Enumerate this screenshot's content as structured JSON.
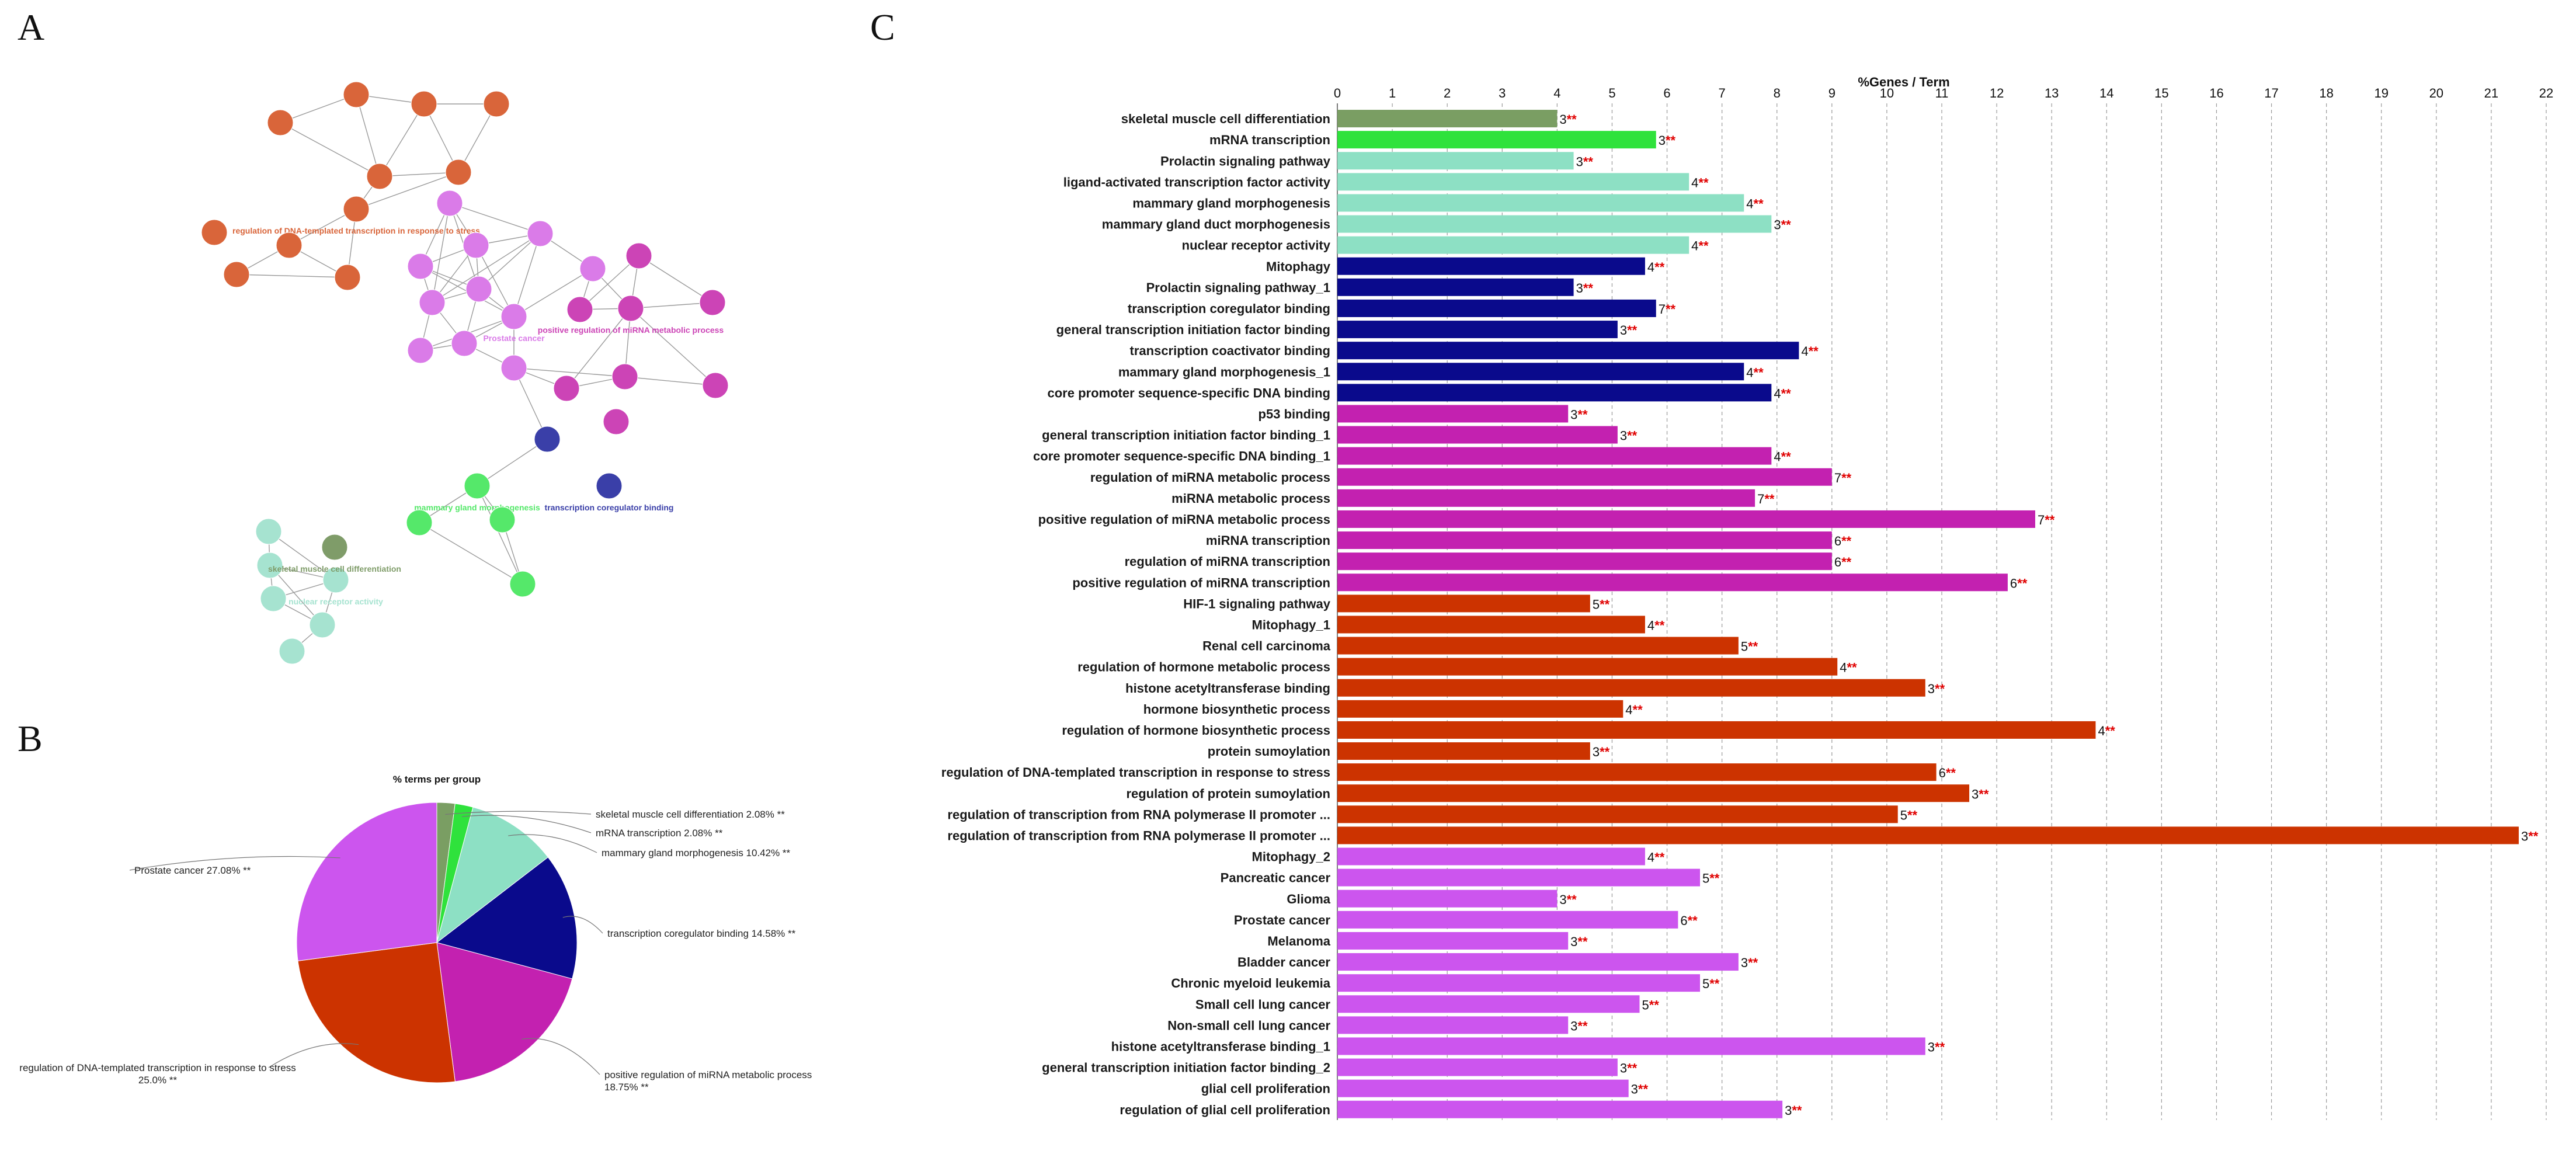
{
  "panels": {
    "a": "A",
    "b": "B",
    "c": "C"
  },
  "network": {
    "nodes": [
      {
        "id": "n1",
        "color": "#d9653a",
        "label": ""
      },
      {
        "id": "n2",
        "color": "#d9653a",
        "label": ""
      },
      {
        "id": "n3",
        "color": "#d9653a",
        "label": ""
      },
      {
        "id": "n4",
        "color": "#d9653a",
        "label": ""
      },
      {
        "id": "n5",
        "color": "#d9653a",
        "label": ""
      },
      {
        "id": "n6",
        "color": "#d9653a",
        "label": ""
      },
      {
        "id": "n7",
        "color": "#d9653a",
        "label": "regulation of DNA-templated transcription in response to stress",
        "highlight": true
      },
      {
        "id": "n8",
        "color": "#d9653a",
        "label": ""
      },
      {
        "id": "n9",
        "color": "#d9653a",
        "label": ""
      },
      {
        "id": "n10",
        "color": "#d9653a",
        "label": ""
      },
      {
        "id": "n11",
        "color": "#d9653a",
        "label": ""
      },
      {
        "id": "m1",
        "color": "#da7be8",
        "label": ""
      },
      {
        "id": "m2",
        "color": "#da7be8",
        "label": ""
      },
      {
        "id": "m3",
        "color": "#da7be8",
        "label": ""
      },
      {
        "id": "m4",
        "color": "#da7be8",
        "label": ""
      },
      {
        "id": "m5",
        "color": "#da7be8",
        "label": ""
      },
      {
        "id": "m6",
        "color": "#da7be8",
        "label": ""
      },
      {
        "id": "m7",
        "color": "#da7be8",
        "label": "Prostate cancer",
        "highlight": true
      },
      {
        "id": "m8",
        "color": "#da7be8",
        "label": ""
      },
      {
        "id": "m9",
        "color": "#da7be8",
        "label": ""
      },
      {
        "id": "m10",
        "color": "#da7be8",
        "label": ""
      },
      {
        "id": "m11",
        "color": "#da7be8",
        "label": ""
      },
      {
        "id": "p1",
        "color": "#cc44b6",
        "label": ""
      },
      {
        "id": "p2",
        "color": "#cc44b6",
        "label": ""
      },
      {
        "id": "p3",
        "color": "#cc44b6",
        "label": ""
      },
      {
        "id": "p4",
        "color": "#cc44b6",
        "label": "positive regulation of miRNA metabolic process",
        "highlight": true
      },
      {
        "id": "p5",
        "color": "#cc44b6",
        "label": ""
      },
      {
        "id": "p6",
        "color": "#cc44b6",
        "label": ""
      },
      {
        "id": "p7",
        "color": "#cc44b6",
        "label": ""
      },
      {
        "id": "p8",
        "color": "#cc44b6",
        "label": ""
      },
      {
        "id": "b1",
        "color": "#3a3fa8",
        "label": ""
      },
      {
        "id": "b2",
        "color": "#3a3fa8",
        "label": "transcription coregulator binding",
        "highlight": true
      },
      {
        "id": "g1",
        "color": "#55e86a",
        "label": "mammary gland morphogenesis",
        "highlight": true
      },
      {
        "id": "g2",
        "color": "#55e86a",
        "label": ""
      },
      {
        "id": "g3",
        "color": "#55e86a",
        "label": ""
      },
      {
        "id": "g4",
        "color": "#55e86a",
        "label": ""
      },
      {
        "id": "t1",
        "color": "#a6e3d0",
        "label": ""
      },
      {
        "id": "t2",
        "color": "#a6e3d0",
        "label": ""
      },
      {
        "id": "t3",
        "color": "#a6e3d0",
        "label": ""
      },
      {
        "id": "t4",
        "color": "#a6e3d0",
        "label": "nuclear receptor activity",
        "highlight": true
      },
      {
        "id": "t5",
        "color": "#a6e3d0",
        "label": ""
      },
      {
        "id": "t6",
        "color": "#a6e3d0",
        "label": ""
      },
      {
        "id": "o1",
        "color": "#7f9c69",
        "label": "skeletal muscle cell differentiation",
        "highlight": true
      }
    ]
  },
  "pie": {
    "title": "% terms per group",
    "slices": [
      {
        "name": "skeletal muscle cell differentiation",
        "label": "skeletal muscle cell differentiation 2.08% **",
        "value": 2.08,
        "color": "#7a9e63"
      },
      {
        "name": "mRNA transcription",
        "label": "mRNA transcription 2.08% **",
        "value": 2.08,
        "color": "#2fe23c"
      },
      {
        "name": "mammary gland morphogenesis",
        "label": "mammary gland morphogenesis 10.42% **",
        "value": 10.42,
        "color": "#8de0c4"
      },
      {
        "name": "transcription coregulator binding",
        "label": "transcription coregulator binding 14.58% **",
        "value": 14.58,
        "color": "#0a0a8c"
      },
      {
        "name": "positive regulation of miRNA metabolic process",
        "label": "positive regulation of miRNA metabolic process 18.75% **",
        "value": 18.75,
        "color": "#c321b0"
      },
      {
        "name": "regulation of DNA-templated transcription in response to stress",
        "label": "regulation of DNA-templated transcription in response to stress 25.0% **",
        "value": 25.0,
        "color": "#cc3300"
      },
      {
        "name": "Prostate cancer",
        "label": "Prostate cancer 27.08% **",
        "value": 27.08,
        "color": "#cc55ee"
      }
    ]
  },
  "chart_data": {
    "type": "bar",
    "orientation": "horizontal",
    "title": "%Genes / Term",
    "xlim": [
      0,
      22
    ],
    "xticks": [
      0,
      1,
      2,
      3,
      4,
      5,
      6,
      7,
      8,
      9,
      10,
      11,
      12,
      13,
      14,
      15,
      16,
      17,
      18,
      19,
      20,
      21,
      22
    ],
    "grid": "vertical dashed",
    "series": [
      {
        "category": "skeletal muscle cell differentiation",
        "value": 4.0,
        "count": "3",
        "stars": "**",
        "color": "#7a9e63"
      },
      {
        "category": "mRNA transcription",
        "value": 5.8,
        "count": "3",
        "stars": "**",
        "color": "#2fe23c"
      },
      {
        "category": "Prolactin signaling pathway",
        "value": 4.3,
        "count": "3",
        "stars": "**",
        "color": "#8de0c4"
      },
      {
        "category": "ligand-activated transcription factor activity",
        "value": 6.4,
        "count": "4",
        "stars": "**",
        "color": "#8de0c4"
      },
      {
        "category": "mammary gland morphogenesis",
        "value": 7.4,
        "count": "4",
        "stars": "**",
        "color": "#8de0c4"
      },
      {
        "category": "mammary gland duct morphogenesis",
        "value": 7.9,
        "count": "3",
        "stars": "**",
        "color": "#8de0c4"
      },
      {
        "category": "nuclear receptor activity",
        "value": 6.4,
        "count": "4",
        "stars": "**",
        "color": "#8de0c4"
      },
      {
        "category": "Mitophagy",
        "value": 5.6,
        "count": "4",
        "stars": "**",
        "color": "#0a0a8c"
      },
      {
        "category": "Prolactin signaling pathway_1",
        "value": 4.3,
        "count": "3",
        "stars": "**",
        "color": "#0a0a8c"
      },
      {
        "category": "transcription coregulator binding",
        "value": 5.8,
        "count": "7",
        "stars": "**",
        "color": "#0a0a8c"
      },
      {
        "category": "general transcription initiation factor binding",
        "value": 5.1,
        "count": "3",
        "stars": "**",
        "color": "#0a0a8c"
      },
      {
        "category": "transcription coactivator binding",
        "value": 8.4,
        "count": "4",
        "stars": "**",
        "color": "#0a0a8c"
      },
      {
        "category": "mammary gland morphogenesis_1",
        "value": 7.4,
        "count": "4",
        "stars": "**",
        "color": "#0a0a8c"
      },
      {
        "category": "core promoter sequence-specific DNA binding",
        "value": 7.9,
        "count": "4",
        "stars": "**",
        "color": "#0a0a8c"
      },
      {
        "category": "p53 binding",
        "value": 4.2,
        "count": "3",
        "stars": "**",
        "color": "#c321b0"
      },
      {
        "category": "general transcription initiation factor binding_1",
        "value": 5.1,
        "count": "3",
        "stars": "**",
        "color": "#c321b0"
      },
      {
        "category": "core promoter sequence-specific DNA binding_1",
        "value": 7.9,
        "count": "4",
        "stars": "**",
        "color": "#c321b0"
      },
      {
        "category": "regulation of miRNA metabolic process",
        "value": 9.0,
        "count": "7",
        "stars": "**",
        "color": "#c321b0"
      },
      {
        "category": "miRNA metabolic process",
        "value": 7.6,
        "count": "7",
        "stars": "**",
        "color": "#c321b0"
      },
      {
        "category": "positive regulation of miRNA metabolic process",
        "value": 12.7,
        "count": "7",
        "stars": "**",
        "color": "#c321b0"
      },
      {
        "category": "miRNA transcription",
        "value": 9.0,
        "count": "6",
        "stars": "**",
        "color": "#c321b0"
      },
      {
        "category": "regulation of miRNA transcription",
        "value": 9.0,
        "count": "6",
        "stars": "**",
        "color": "#c321b0"
      },
      {
        "category": "positive regulation of miRNA transcription",
        "value": 12.2,
        "count": "6",
        "stars": "**",
        "color": "#c321b0"
      },
      {
        "category": "HIF-1 signaling pathway",
        "value": 4.6,
        "count": "5",
        "stars": "**",
        "color": "#cc3300"
      },
      {
        "category": "Mitophagy_1",
        "value": 5.6,
        "count": "4",
        "stars": "**",
        "color": "#cc3300"
      },
      {
        "category": "Renal cell carcinoma",
        "value": 7.3,
        "count": "5",
        "stars": "**",
        "color": "#cc3300"
      },
      {
        "category": "regulation of hormone metabolic process",
        "value": 9.1,
        "count": "4",
        "stars": "**",
        "color": "#cc3300"
      },
      {
        "category": "histone acetyltransferase binding",
        "value": 10.7,
        "count": "3",
        "stars": "**",
        "color": "#cc3300"
      },
      {
        "category": "hormone biosynthetic process",
        "value": 5.2,
        "count": "4",
        "stars": "**",
        "color": "#cc3300"
      },
      {
        "category": "regulation of hormone biosynthetic process",
        "value": 13.8,
        "count": "4",
        "stars": "**",
        "color": "#cc3300"
      },
      {
        "category": "protein sumoylation",
        "value": 4.6,
        "count": "3",
        "stars": "**",
        "color": "#cc3300"
      },
      {
        "category": "regulation of DNA-templated transcription in response to stress",
        "value": 10.9,
        "count": "6",
        "stars": "**",
        "color": "#cc3300"
      },
      {
        "category": "regulation of protein sumoylation",
        "value": 11.5,
        "count": "3",
        "stars": "**",
        "color": "#cc3300"
      },
      {
        "category": "regulation of transcription from RNA polymerase II promoter ...",
        "value": 10.2,
        "count": "5",
        "stars": "**",
        "color": "#cc3300"
      },
      {
        "category": "regulation of transcription from RNA polymerase II promoter ...",
        "value": 21.5,
        "count": "3",
        "stars": "**",
        "color": "#cc3300"
      },
      {
        "category": "Mitophagy_2",
        "value": 5.6,
        "count": "4",
        "stars": "**",
        "color": "#cc55ee"
      },
      {
        "category": "Pancreatic cancer",
        "value": 6.6,
        "count": "5",
        "stars": "**",
        "color": "#cc55ee"
      },
      {
        "category": "Glioma",
        "value": 4.0,
        "count": "3",
        "stars": "**",
        "color": "#cc55ee"
      },
      {
        "category": "Prostate cancer",
        "value": 6.2,
        "count": "6",
        "stars": "**",
        "color": "#cc55ee"
      },
      {
        "category": "Melanoma",
        "value": 4.2,
        "count": "3",
        "stars": "**",
        "color": "#cc55ee"
      },
      {
        "category": "Bladder cancer",
        "value": 7.3,
        "count": "3",
        "stars": "**",
        "color": "#cc55ee"
      },
      {
        "category": "Chronic myeloid leukemia",
        "value": 6.6,
        "count": "5",
        "stars": "**",
        "color": "#cc55ee"
      },
      {
        "category": "Small cell lung cancer",
        "value": 5.5,
        "count": "5",
        "stars": "**",
        "color": "#cc55ee"
      },
      {
        "category": "Non-small cell lung cancer",
        "value": 4.2,
        "count": "3",
        "stars": "**",
        "color": "#cc55ee"
      },
      {
        "category": "histone acetyltransferase binding_1",
        "value": 10.7,
        "count": "3",
        "stars": "**",
        "color": "#cc55ee"
      },
      {
        "category": "general transcription initiation factor binding_2",
        "value": 5.1,
        "count": "3",
        "stars": "**",
        "color": "#cc55ee"
      },
      {
        "category": "glial cell proliferation",
        "value": 5.3,
        "count": "3",
        "stars": "**",
        "color": "#cc55ee"
      },
      {
        "category": "regulation of glial cell proliferation",
        "value": 8.1,
        "count": "3",
        "stars": "**",
        "color": "#cc55ee"
      }
    ]
  }
}
